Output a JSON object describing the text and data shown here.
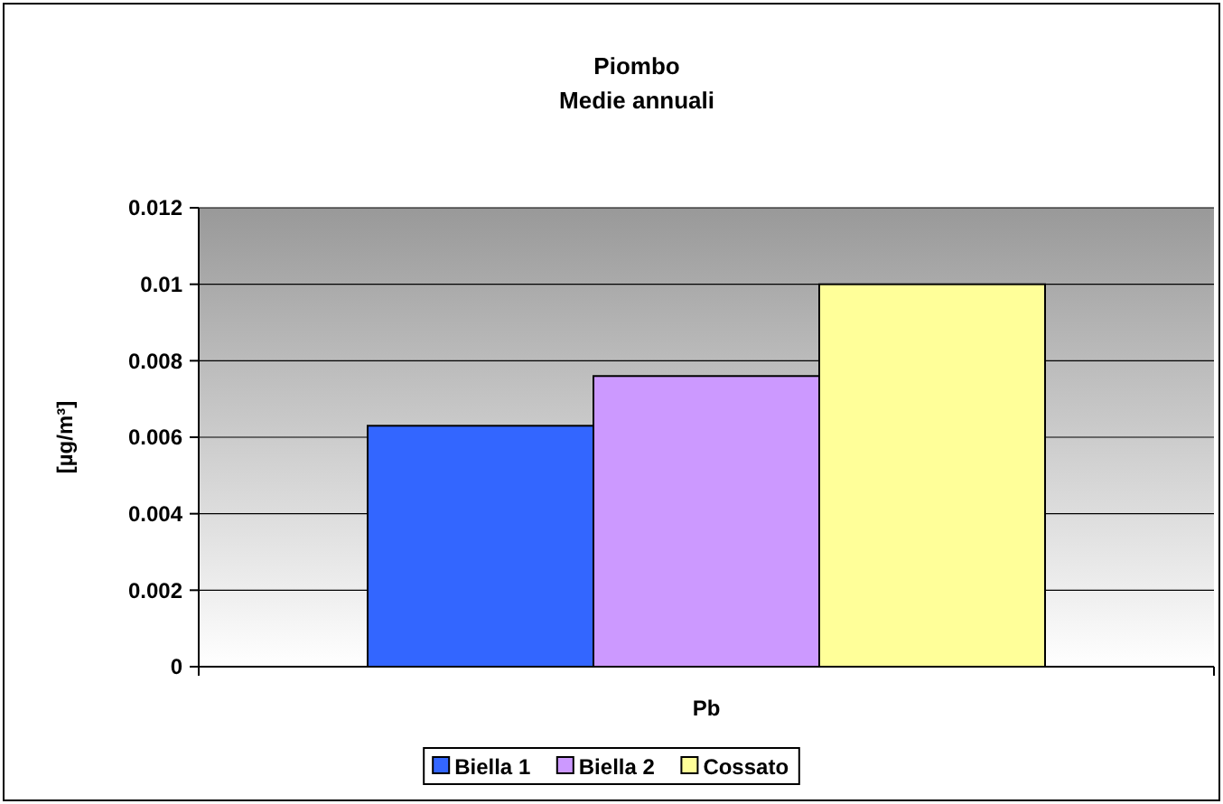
{
  "chart_data": {
    "type": "bar",
    "title": "Piombo",
    "subtitle": "Medie annuali",
    "ylabel": "[µg/m³]",
    "categories": [
      "Pb"
    ],
    "series": [
      {
        "name": "Biella 1",
        "color": "#3366ff",
        "values": [
          0.0063
        ]
      },
      {
        "name": "Biella 2",
        "color": "#cc99ff",
        "values": [
          0.0076
        ]
      },
      {
        "name": "Cossato",
        "color": "#ffff99",
        "values": [
          0.01
        ]
      }
    ],
    "ylim": [
      0,
      0.012
    ],
    "yticks": [
      0,
      0.002,
      0.004,
      0.006,
      0.008,
      0.01,
      0.012
    ],
    "grid": "y",
    "legend": "bottom"
  }
}
